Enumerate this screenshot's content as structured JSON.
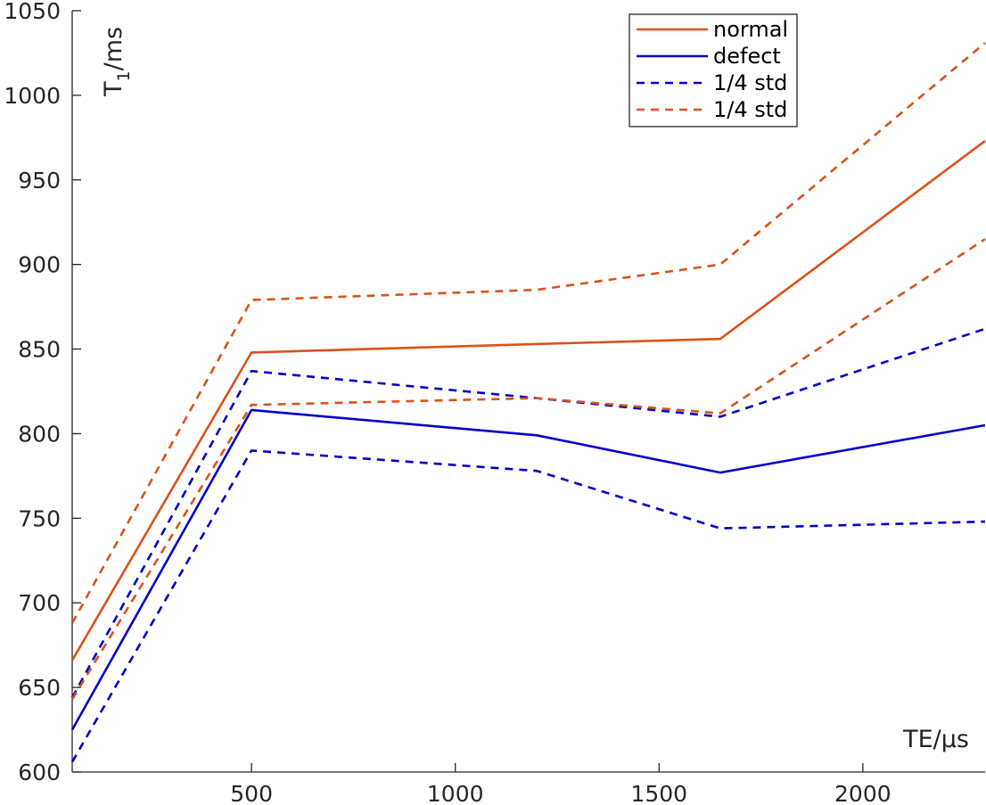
{
  "chart_data": {
    "type": "line",
    "xlabel": "TE/μs",
    "ylabel_main": "T",
    "ylabel_sub": "1",
    "ylabel_unit": "/ms",
    "xlim": [
      60,
      2300
    ],
    "ylim": [
      600,
      1050
    ],
    "xticks": [
      500,
      1000,
      1500,
      2000
    ],
    "yticks": [
      600,
      650,
      700,
      750,
      800,
      850,
      900,
      950,
      1000,
      1050
    ],
    "grid": false,
    "legend_position": "top-right",
    "x": [
      60,
      500,
      1200,
      1650,
      2300
    ],
    "series": [
      {
        "name": "normal",
        "style": "solid",
        "color": "#D95319",
        "values": [
          666,
          848,
          853,
          856,
          973
        ]
      },
      {
        "name": "defect",
        "style": "solid",
        "color": "#0000CC",
        "values": [
          625,
          814,
          799,
          777,
          805
        ]
      },
      {
        "name": "1/4 std",
        "style": "dashed",
        "color": "#0000CC",
        "values": [
          644,
          837,
          821,
          810,
          862
        ]
      },
      {
        "name": "1/4 std",
        "style": "dashed",
        "color": "#D95319",
        "values": [
          688,
          879,
          885,
          900,
          1031
        ]
      },
      {
        "name": "",
        "style": "dashed",
        "color": "#0000CC",
        "values": [
          606,
          790,
          778,
          744,
          748
        ]
      },
      {
        "name": "",
        "style": "dashed",
        "color": "#D95319",
        "values": [
          643,
          817,
          821,
          812,
          915
        ]
      }
    ]
  }
}
